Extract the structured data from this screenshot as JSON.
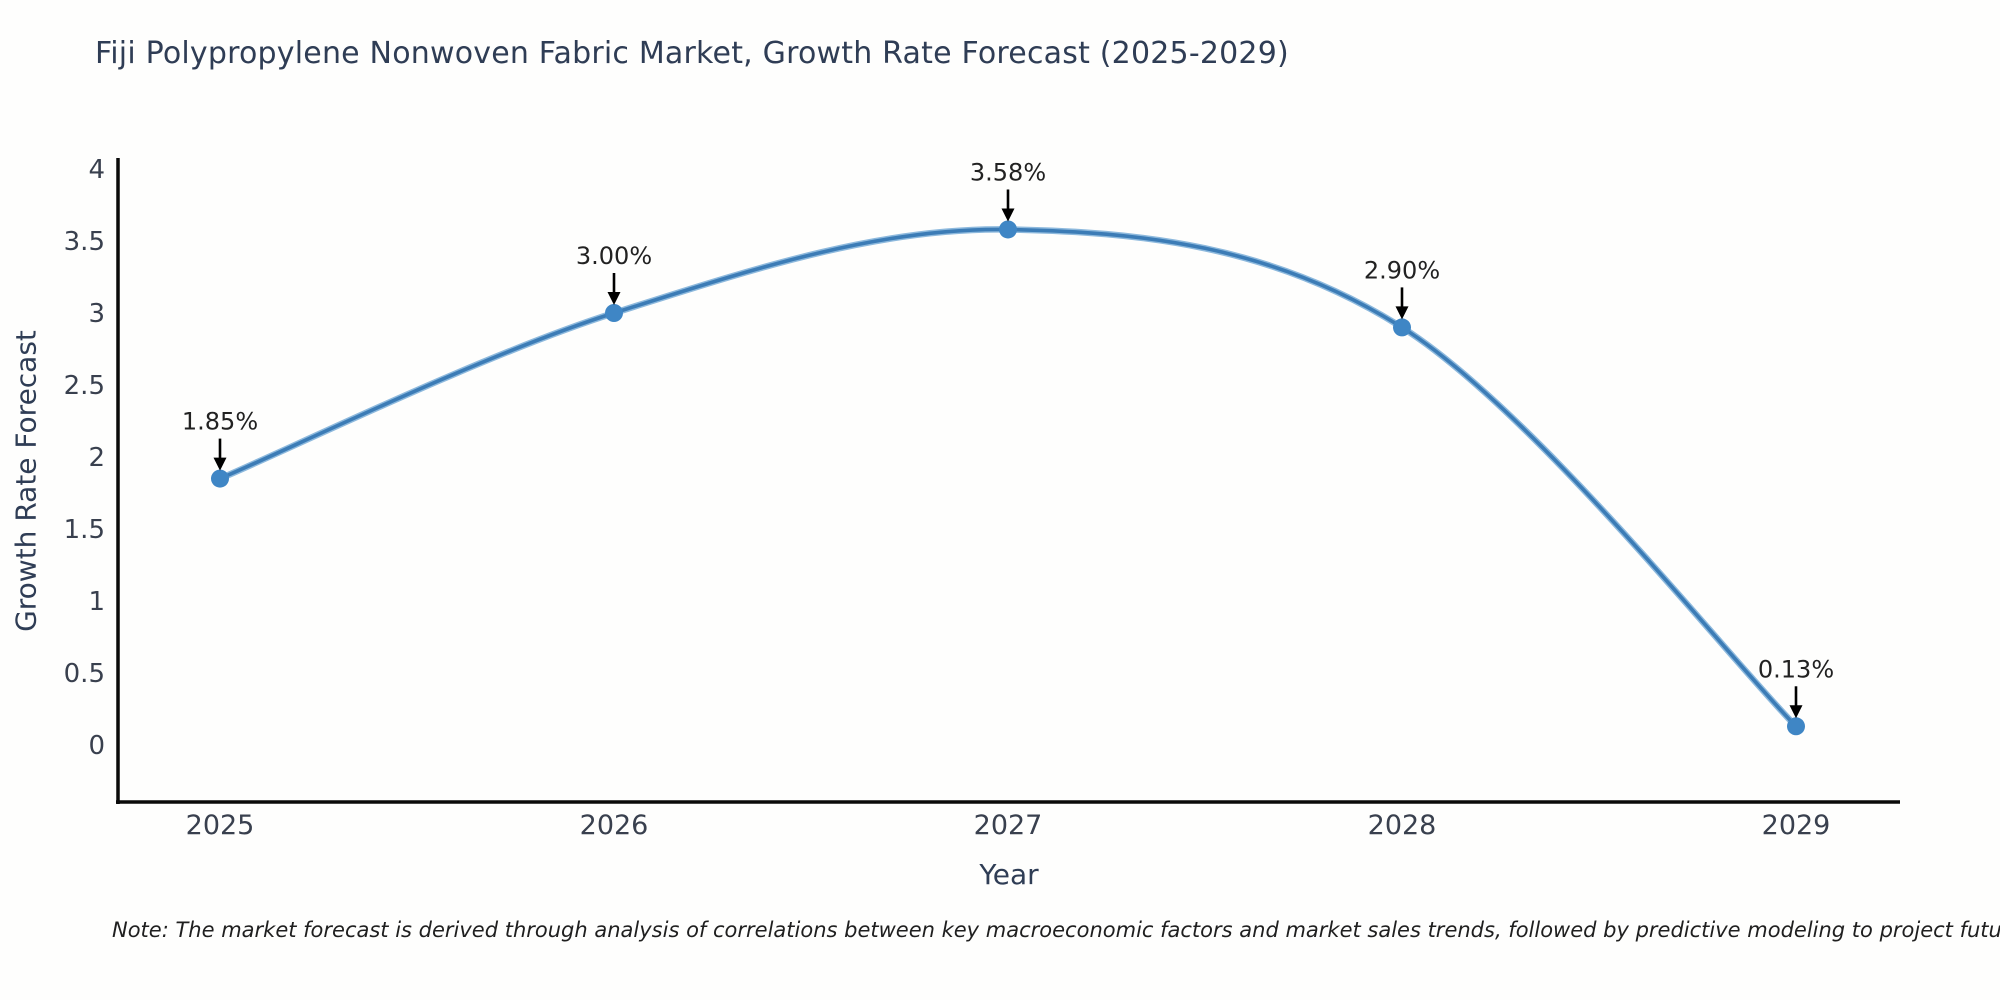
{
  "note": "Note: The market forecast is derived through analysis of correlations between key macroeconomic factors and market sales trends, followed by predictive modeling to project future sales",
  "chart_data": {
    "type": "line",
    "title": "Fiji Polypropylene Nonwoven Fabric Market, Growth Rate Forecast (2025-2029)",
    "xlabel": "Year",
    "ylabel": "Growth Rate Forecast",
    "x": [
      2025,
      2026,
      2027,
      2028,
      2029
    ],
    "series": [
      {
        "name": "Growth Rate Forecast",
        "values": [
          1.85,
          3.0,
          3.58,
          2.9,
          0.13
        ],
        "point_labels": [
          "1.85%",
          "3.00%",
          "3.58%",
          "2.90%",
          "0.13%"
        ]
      }
    ],
    "yticks": [
      0,
      0.5,
      1,
      1.5,
      2,
      2.5,
      3,
      3.5,
      4
    ],
    "ytick_labels": [
      "0",
      "0.5",
      "1",
      "1.5",
      "2",
      "2.5",
      "3",
      "3.5",
      "4"
    ],
    "xtick_labels": [
      "2025",
      "2026",
      "2027",
      "2028",
      "2029"
    ],
    "ylim": [
      -0.4,
      4.07
    ],
    "grid": false,
    "legend": "none",
    "annotation_style": "black down-arrows pointing at each marker",
    "colors": {
      "line": "#3c7cb6",
      "marker": "#3f86c5",
      "axis": "#0a0a0a",
      "tick_label": "#39404e",
      "data_label": "#222222",
      "arrow": "#000000",
      "title": "#2f3d55",
      "background": "#fefefd"
    }
  }
}
